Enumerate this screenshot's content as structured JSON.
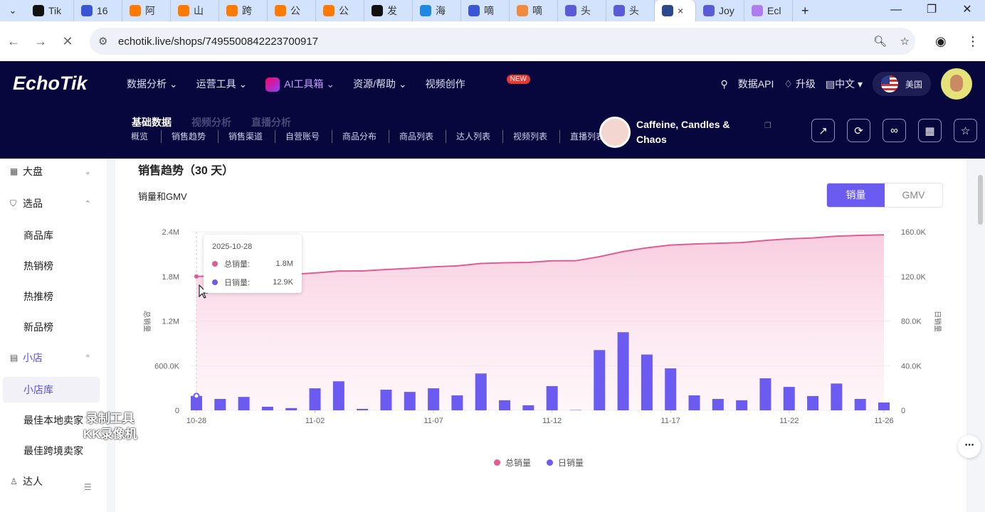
{
  "browser": {
    "tabs": [
      {
        "label": "Tik",
        "color": "#111"
      },
      {
        "label": "16",
        "color": "#3a56d4"
      },
      {
        "label": "阿",
        "color": "#ff7a00"
      },
      {
        "label": "山",
        "color": "#ff7a00"
      },
      {
        "label": "跨",
        "color": "#ff7a00"
      },
      {
        "label": "公",
        "color": "#ff7a00"
      },
      {
        "label": "公",
        "color": "#ff7a00"
      },
      {
        "label": "发",
        "color": "#111"
      },
      {
        "label": "海",
        "color": "#1e88e5"
      },
      {
        "label": "嘀",
        "color": "#3a56d4"
      },
      {
        "label": "嘀",
        "color": "#f08a3c"
      },
      {
        "label": "头",
        "color": "#5b5bd6"
      },
      {
        "label": "头",
        "color": "#5b5bd6"
      },
      {
        "label": "×",
        "color": "#2b4a8c"
      },
      {
        "label": "Joy",
        "color": "#5b5bd6"
      },
      {
        "label": "Ecl",
        "color": "#b07cf0"
      }
    ],
    "new_tab": "+",
    "url": "echotik.live/shops/7495500842223700917"
  },
  "header": {
    "logo": "EchoTik",
    "nav": [
      "数据分析",
      "运营工具",
      "AI工具箱",
      "资源/帮助",
      "视频创作"
    ],
    "new_badge": "NEW",
    "api": "数据API",
    "upgrade": "升级",
    "language": "中文",
    "region": "美国",
    "subtabs": [
      "基础数据",
      "视频分析",
      "直播分析"
    ],
    "subnav": [
      "概览",
      "销售趋势",
      "销售渠道",
      "自营账号",
      "商品分布",
      "商品列表",
      "达人列表",
      "视频列表",
      "直播列表"
    ],
    "shop_name": "Caffeine, Candles & Chaos"
  },
  "sidebar": {
    "items": [
      {
        "label": "大盘",
        "icon": "grid-icon",
        "chev": "⌄"
      },
      {
        "label": "选品",
        "icon": "bag-icon",
        "chev": "⌃"
      },
      {
        "label": "商品库"
      },
      {
        "label": "热销榜"
      },
      {
        "label": "热推榜"
      },
      {
        "label": "新品榜"
      },
      {
        "label": "小店",
        "icon": "store-icon",
        "chev": "⌃"
      },
      {
        "label": "小店库"
      },
      {
        "label": "最佳本地卖家"
      },
      {
        "label": "最佳跨境卖家"
      },
      {
        "label": "达人",
        "icon": "person-icon"
      }
    ]
  },
  "main": {
    "title": "销售趋势（30 天）",
    "subtitle": "销量和GMV",
    "toggle": [
      "销量",
      "GMV"
    ],
    "toggle_active": "销量"
  },
  "tooltip": {
    "date": "2025-10-28",
    "rows": [
      {
        "label": "总销量:",
        "value": "1.8M"
      },
      {
        "label": "日销量:",
        "value": "12.9K"
      }
    ]
  },
  "watermark": [
    "录制工具",
    "KK录像机"
  ],
  "chart_data": {
    "type": "bar+line",
    "colors": {
      "total": "#e05c95",
      "daily": "#6b5bf0"
    },
    "x": [
      "10-28",
      "10-29",
      "10-30",
      "10-31",
      "11-01",
      "11-02",
      "11-03",
      "11-04",
      "11-05",
      "11-06",
      "11-07",
      "11-08",
      "11-09",
      "11-10",
      "11-11",
      "11-12",
      "11-13",
      "11-14",
      "11-15",
      "11-16",
      "11-17",
      "11-18",
      "11-19",
      "11-20",
      "11-21",
      "11-22",
      "11-23",
      "11-24",
      "11-25",
      "11-26"
    ],
    "x_tick_labels": [
      "10-28",
      "11-02",
      "11-07",
      "11-12",
      "11-17",
      "11-22",
      "11-26"
    ],
    "y_left": {
      "label": "总销量",
      "ticks": [
        "0",
        "600.0K",
        "1.2M",
        "1.8M",
        "2.4M"
      ],
      "range": [
        0,
        2400000
      ]
    },
    "y_right": {
      "label": "日销量",
      "ticks": [
        "0",
        "40.0K",
        "80.0K",
        "120.0K",
        "160.0K"
      ],
      "range": [
        0,
        160000
      ]
    },
    "series": [
      {
        "name": "总销量",
        "type": "area-line",
        "values": [
          1800000,
          1810000,
          1822000,
          1825000,
          1827000,
          1847000,
          1873000,
          1874000,
          1893000,
          1909000,
          1929000,
          1942000,
          1975000,
          1984000,
          1989000,
          2010000,
          2011000,
          2065000,
          2135000,
          2185000,
          2222000,
          2236000,
          2246000,
          2255000,
          2284000,
          2305000,
          2318000,
          2342000,
          2352000,
          2359000
        ]
      },
      {
        "name": "日销量",
        "type": "bar",
        "values": [
          12900,
          10200,
          12000,
          3200,
          2000,
          19700,
          26000,
          1300,
          18500,
          16500,
          19700,
          13400,
          33000,
          9000,
          4500,
          21700,
          300,
          54000,
          70000,
          50000,
          37600,
          13400,
          10200,
          9000,
          28700,
          21000,
          12800,
          24000,
          10200,
          7000
        ]
      }
    ],
    "legend": "bottom-center",
    "grid": true
  }
}
